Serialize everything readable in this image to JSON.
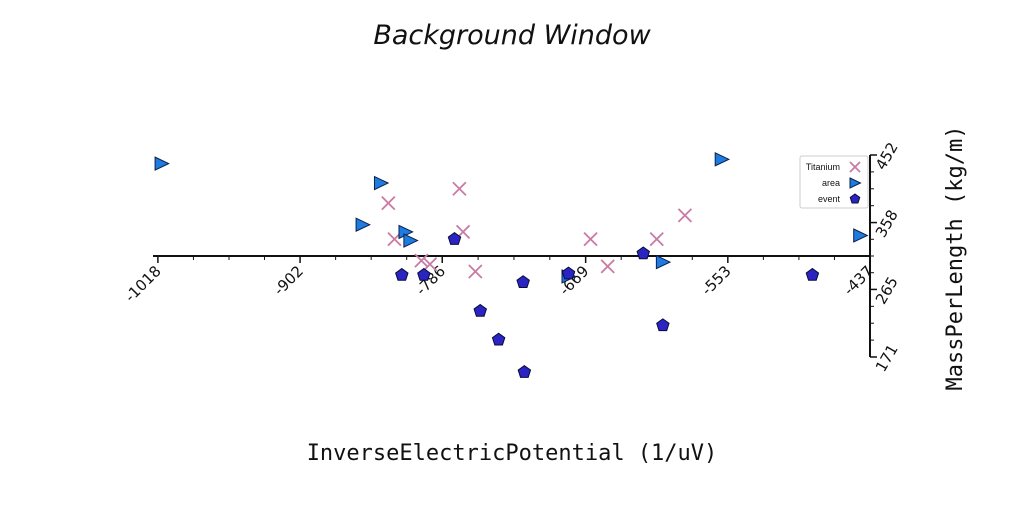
{
  "chart_data": {
    "type": "scatter",
    "title": "Background Window",
    "xlabel": "InverseElectricPotential (1/uV)",
    "ylabel": "MassPerLength (kg/m)",
    "xlim": [
      -1022,
      -437
    ],
    "ylim": [
      171,
      452
    ],
    "x_ticks": [
      "-1018",
      "-902",
      "-786",
      "-669",
      "-553",
      "-437"
    ],
    "y_ticks": [
      "452",
      "358",
      "265",
      "171"
    ],
    "legend_position": "top-right",
    "series": [
      {
        "name": "Titanium",
        "marker": "x",
        "color": "#c97aa5",
        "points": [
          [
            -830,
            385
          ],
          [
            -825,
            335
          ],
          [
            -803,
            305
          ],
          [
            -796,
            300
          ],
          [
            -772,
            405
          ],
          [
            -769,
            345
          ],
          [
            -759,
            290
          ],
          [
            -665,
            335
          ],
          [
            -651,
            297
          ],
          [
            -611,
            335
          ],
          [
            -588,
            368
          ]
        ]
      },
      {
        "name": "area",
        "marker": "triangle-right",
        "color": "#1e7be0",
        "points": [
          [
            -1015,
            440
          ],
          [
            -851,
            355
          ],
          [
            -836,
            413
          ],
          [
            -816,
            345
          ],
          [
            -812,
            333
          ],
          [
            -683,
            283
          ],
          [
            -606,
            303
          ],
          [
            -558,
            446
          ],
          [
            -445,
            340
          ]
        ]
      },
      {
        "name": "event",
        "marker": "pentagon",
        "color": "#2a24c2",
        "points": [
          [
            -819,
            285
          ],
          [
            -801,
            285
          ],
          [
            -776,
            335
          ],
          [
            -755,
            235
          ],
          [
            -740,
            195
          ],
          [
            -720,
            275
          ],
          [
            -719,
            150
          ],
          [
            -683,
            287
          ],
          [
            -622,
            315
          ],
          [
            -606,
            215
          ],
          [
            -484,
            285
          ]
        ]
      }
    ]
  }
}
